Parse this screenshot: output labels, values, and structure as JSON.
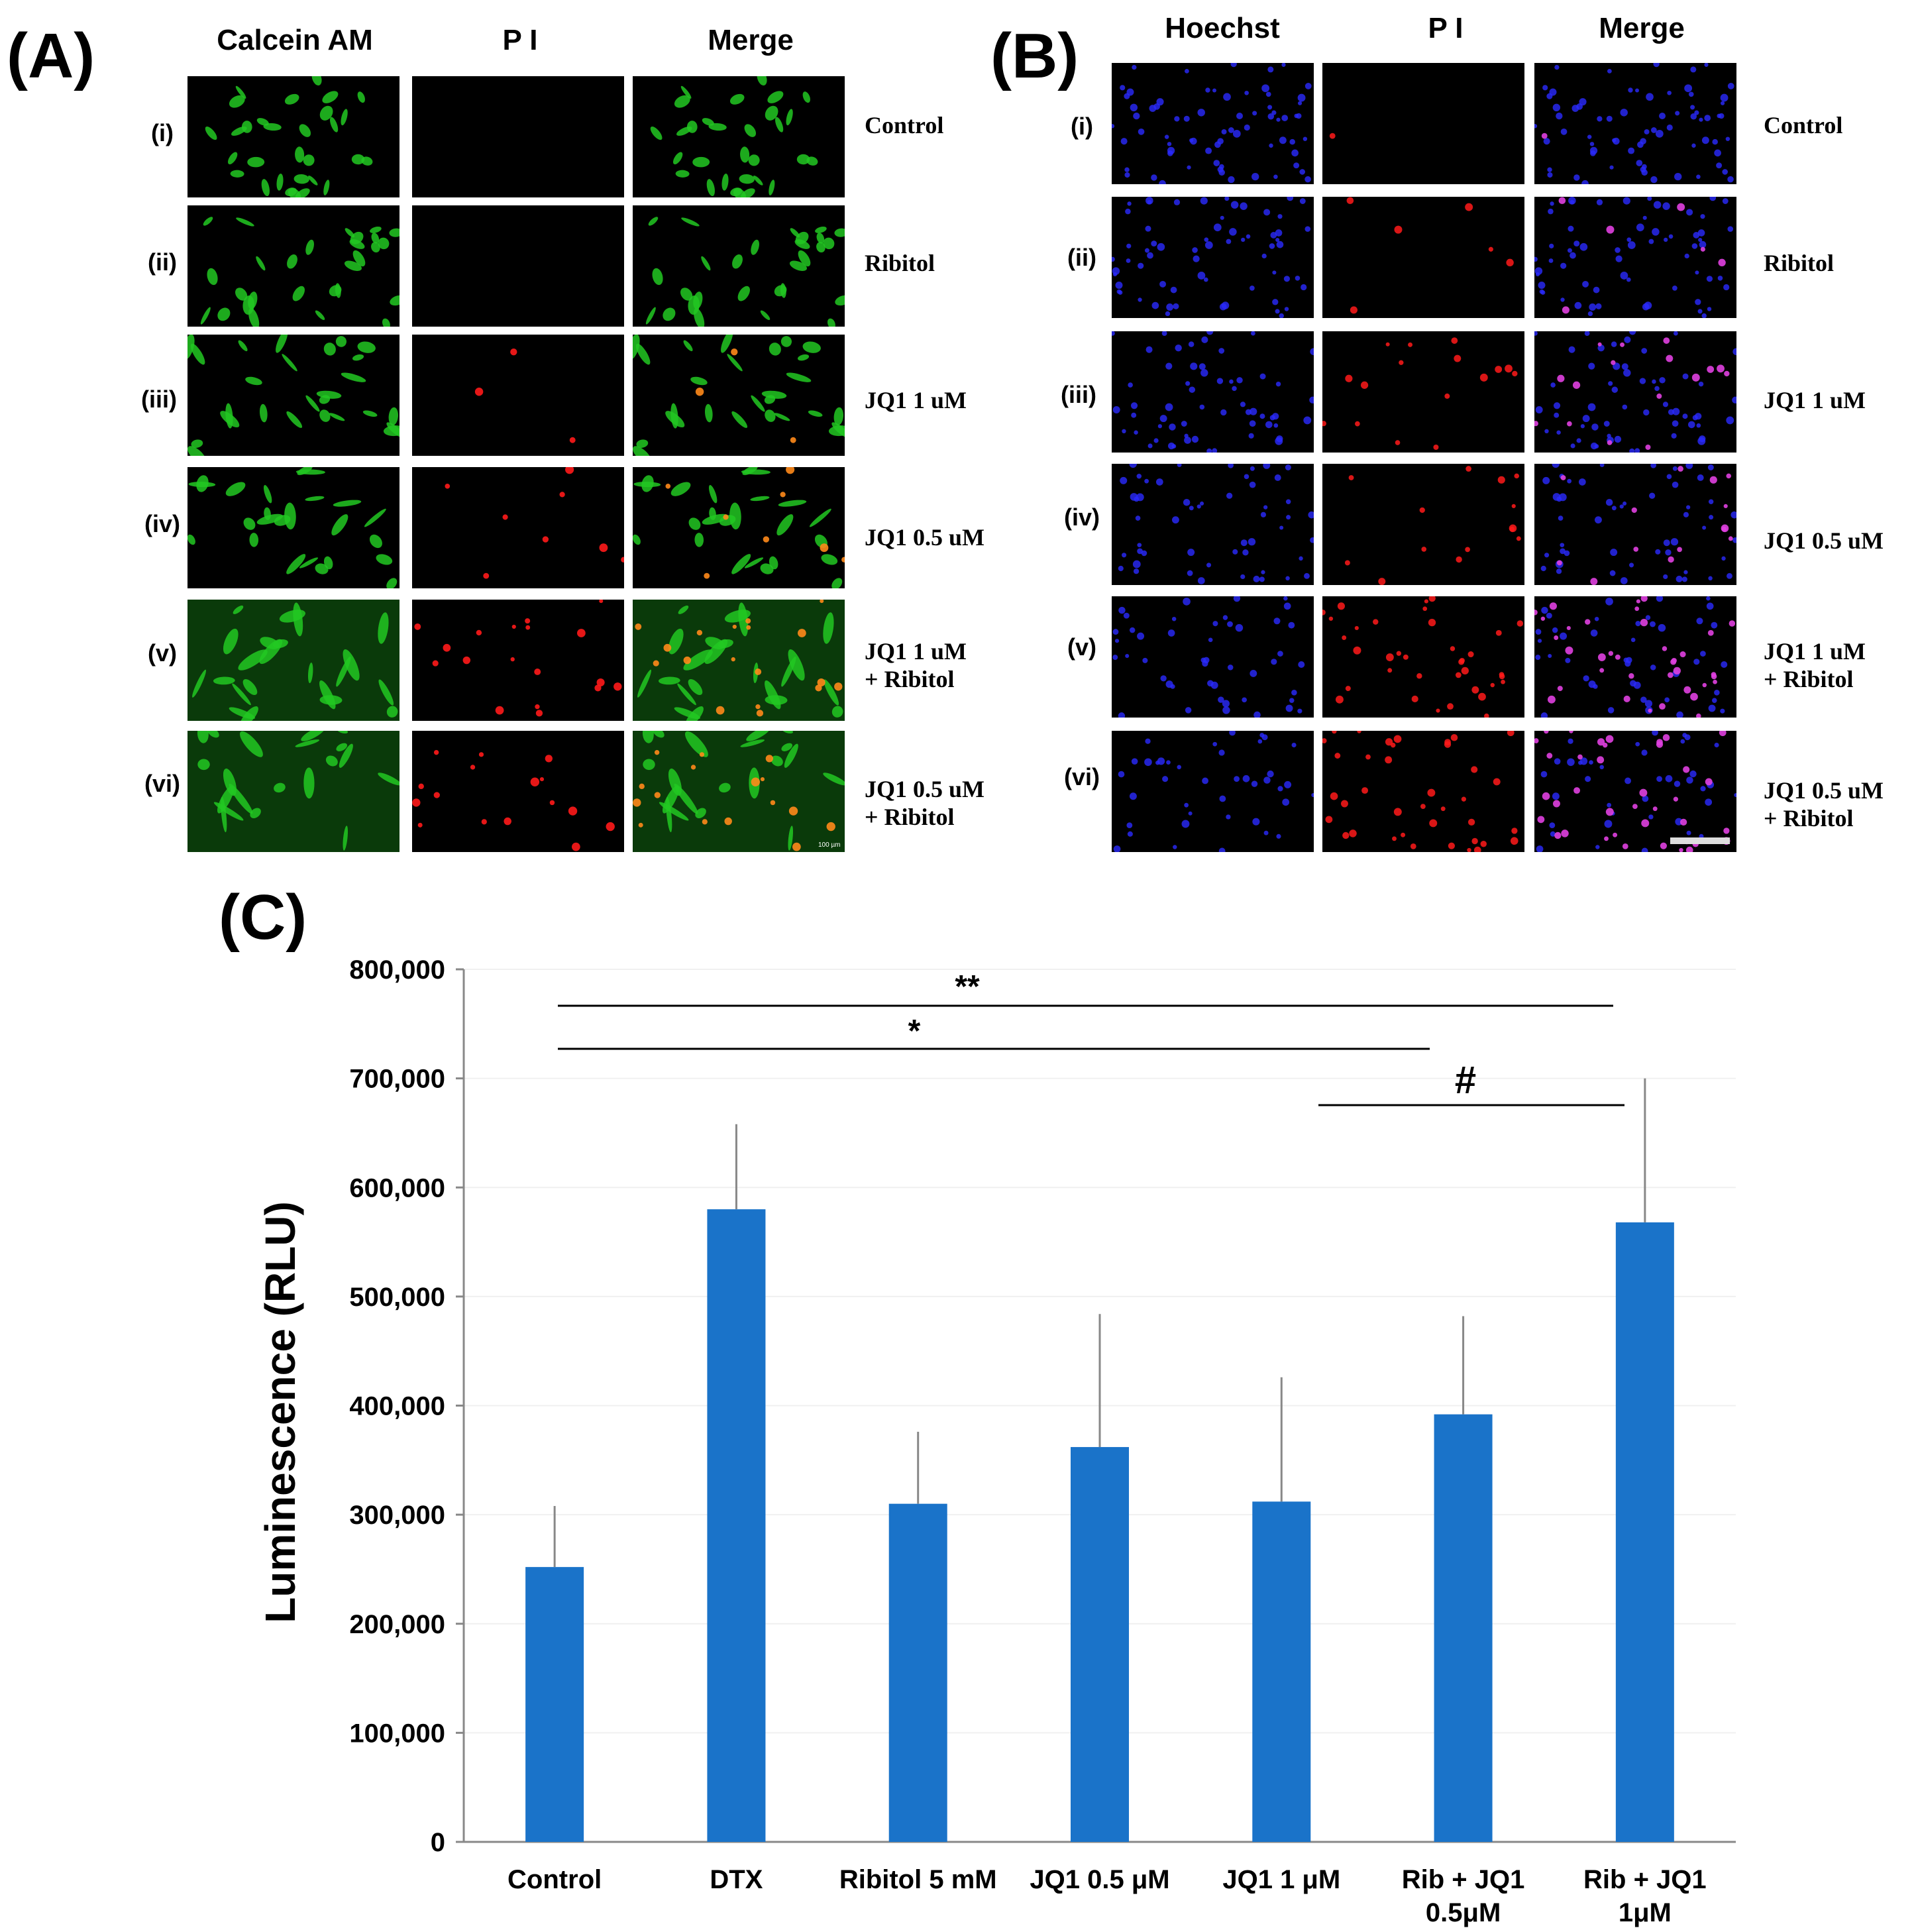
{
  "panel_a": {
    "letter": "(A)",
    "columns": [
      "Calcein AM",
      "P I",
      "Merge"
    ],
    "rows": [
      "(i)",
      "(ii)",
      "(iii)",
      "(iv)",
      "(v)",
      "(vi)"
    ],
    "conditions": [
      [
        "Control"
      ],
      [
        "Ribitol"
      ],
      [
        "JQ1 1 uM"
      ],
      [
        "JQ1 0.5 uM"
      ],
      [
        "JQ1 1 uM",
        "+ Ribitol"
      ],
      [
        "JQ1 0.5 uM",
        "+ Ribitol"
      ]
    ],
    "scale_bar": "100 µm"
  },
  "panel_b": {
    "letter": "(B)",
    "columns": [
      "Hoechst",
      "P I",
      "Merge"
    ],
    "rows": [
      "(i)",
      "(ii)",
      "(iii)",
      "(iv)",
      "(v)",
      "(vi)"
    ],
    "conditions": [
      [
        "Control"
      ],
      [
        "Ribitol"
      ],
      [
        "JQ1 1 uM"
      ],
      [
        "JQ1 0.5 uM"
      ],
      [
        "JQ1 1 uM",
        "+ Ribitol"
      ],
      [
        "JQ1 0.5 uM",
        "+ Ribitol"
      ]
    ]
  },
  "colors": {
    "calcein": "#22c822",
    "pi": "#ff1a1a",
    "hoechst": "#2a2aff",
    "merge_b": "#e040e0",
    "bar": "#1a73c9"
  },
  "chart_data": {
    "panel_letter": "(C)",
    "type": "bar",
    "ylabel": "Luminescence (RLU)",
    "ylim": [
      0,
      800000
    ],
    "yticks": [
      0,
      100000,
      200000,
      300000,
      400000,
      500000,
      600000,
      700000,
      800000
    ],
    "ytick_labels": [
      "0",
      "100,000",
      "200,000",
      "300,000",
      "400,000",
      "500,000",
      "600,000",
      "700,000",
      "800,000"
    ],
    "categories": [
      [
        "Control"
      ],
      [
        "DTX"
      ],
      [
        "Ribitol 5 mM"
      ],
      [
        "JQ1 0.5 μM"
      ],
      [
        "JQ1 1 μM"
      ],
      [
        "Rib + JQ1",
        "0.5μM"
      ],
      [
        "Rib + JQ1",
        "1μM"
      ]
    ],
    "values": [
      252000,
      580000,
      310000,
      362000,
      312000,
      392000,
      568000
    ],
    "errors": [
      56000,
      78000,
      66000,
      122000,
      114000,
      90000,
      132000
    ],
    "significance": [
      {
        "from": 0,
        "to": 6,
        "label": "**"
      },
      {
        "from": 0,
        "to": 5,
        "label": "*"
      },
      {
        "from": 4,
        "to": 6,
        "label": "#"
      }
    ],
    "grid": false
  }
}
